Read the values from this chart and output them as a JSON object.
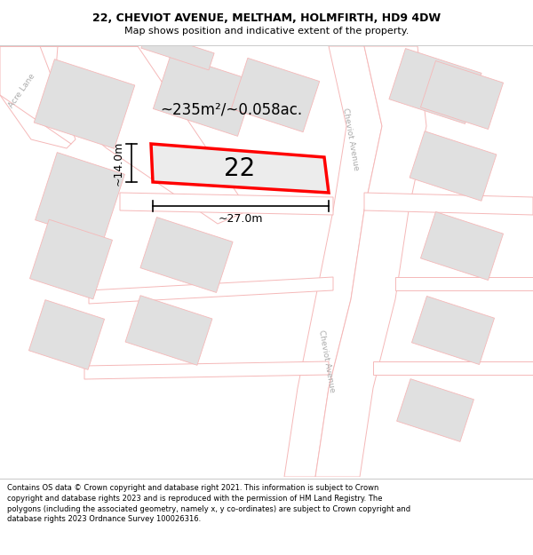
{
  "title_line1": "22, CHEVIOT AVENUE, MELTHAM, HOLMFIRTH, HD9 4DW",
  "title_line2": "Map shows position and indicative extent of the property.",
  "footer_text": "Contains OS data © Crown copyright and database right 2021. This information is subject to Crown copyright and database rights 2023 and is reproduced with the permission of HM Land Registry. The polygons (including the associated geometry, namely x, y co-ordinates) are subject to Crown copyright and database rights 2023 Ordnance Survey 100026316.",
  "area_text": "~235m²/~0.058ac.",
  "width_label": "~27.0m",
  "height_label": "~14.0m",
  "house_number": "22",
  "bg_color": "#ffffff",
  "map_bg": "#ffffff",
  "plot_outline_red": "#ff0000",
  "plot_fill": "#ececec",
  "neighbor_fill": "#e0e0e0",
  "road_line_color": "#f5b8b8",
  "street_label_color": "#aaaaaa",
  "header_sep_color": "#cccccc",
  "footer_sep_color": "#cccccc",
  "dim_line_color": "#000000"
}
